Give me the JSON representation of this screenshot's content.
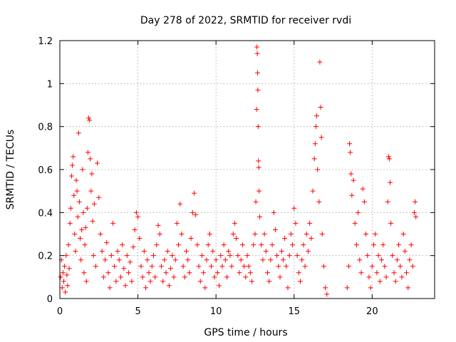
{
  "chart_data": {
    "type": "scatter",
    "title": "Day 278 of 2022, SRMTID for receiver rvdi",
    "xlabel": "GPS time / hours",
    "ylabel": "SRMTID / TECUs",
    "xlim": [
      0,
      24
    ],
    "ylim": [
      0,
      1.2
    ],
    "x_ticks": [
      0,
      5,
      10,
      15,
      20
    ],
    "x_tick_labels": [
      "0",
      "5",
      "10",
      "15",
      "20"
    ],
    "y_ticks": [
      0,
      0.2,
      0.4,
      0.6,
      0.8,
      1.0,
      1.2
    ],
    "y_tick_labels": [
      "0",
      "0.2",
      "0.4",
      "0.6",
      "0.8",
      "1",
      "1.2"
    ],
    "grid": true,
    "marker": "plus",
    "color": "#ff0000",
    "series": [
      {
        "name": "SRMTID",
        "points": [
          [
            0.05,
            0.1
          ],
          [
            0.1,
            0.18
          ],
          [
            0.15,
            0.05
          ],
          [
            0.2,
            0.12
          ],
          [
            0.25,
            0.08
          ],
          [
            0.3,
            0.15
          ],
          [
            0.35,
            0.03
          ],
          [
            0.4,
            0.2
          ],
          [
            0.45,
            0.11
          ],
          [
            0.5,
            0.06
          ],
          [
            0.55,
            0.25
          ],
          [
            0.6,
            0.14
          ],
          [
            0.65,
            0.35
          ],
          [
            0.7,
            0.42
          ],
          [
            0.75,
            0.57
          ],
          [
            0.8,
            0.62
          ],
          [
            0.85,
            0.66
          ],
          [
            0.9,
            0.48
          ],
          [
            0.95,
            0.3
          ],
          [
            1.0,
            0.22
          ],
          [
            1.05,
            0.55
          ],
          [
            1.1,
            0.5
          ],
          [
            1.15,
            0.38
          ],
          [
            1.2,
            0.77
          ],
          [
            1.25,
            0.45
          ],
          [
            1.3,
            0.28
          ],
          [
            1.35,
            0.18
          ],
          [
            1.4,
            0.32
          ],
          [
            1.45,
            0.6
          ],
          [
            1.5,
            0.4
          ],
          [
            1.55,
            0.12
          ],
          [
            1.6,
            0.25
          ],
          [
            1.65,
            0.33
          ],
          [
            1.7,
            0.08
          ],
          [
            1.75,
            0.42
          ],
          [
            1.8,
            0.68
          ],
          [
            1.85,
            0.84
          ],
          [
            1.9,
            0.83
          ],
          [
            1.95,
            0.65
          ],
          [
            2.0,
            0.5
          ],
          [
            2.05,
            0.58
          ],
          [
            2.1,
            0.36
          ],
          [
            2.15,
            0.2
          ],
          [
            2.2,
            0.44
          ],
          [
            2.3,
            0.15
          ],
          [
            2.4,
            0.63
          ],
          [
            2.5,
            0.47
          ],
          [
            2.6,
            0.3
          ],
          [
            2.7,
            0.22
          ],
          [
            2.8,
            0.1
          ],
          [
            2.9,
            0.18
          ],
          [
            3.0,
            0.26
          ],
          [
            3.1,
            0.12
          ],
          [
            3.2,
            0.05
          ],
          [
            3.3,
            0.2
          ],
          [
            3.4,
            0.35
          ],
          [
            3.5,
            0.15
          ],
          [
            3.6,
            0.08
          ],
          [
            3.7,
            0.22
          ],
          [
            3.8,
            0.18
          ],
          [
            3.9,
            0.1
          ],
          [
            4.0,
            0.25
          ],
          [
            4.1,
            0.14
          ],
          [
            4.2,
            0.06
          ],
          [
            4.3,
            0.2
          ],
          [
            4.4,
            0.12
          ],
          [
            4.5,
            0.17
          ],
          [
            4.6,
            0.08
          ],
          [
            4.7,
            0.24
          ],
          [
            4.8,
            0.32
          ],
          [
            4.9,
            0.4
          ],
          [
            5.0,
            0.38
          ],
          [
            5.1,
            0.28
          ],
          [
            5.2,
            0.15
          ],
          [
            5.3,
            0.1
          ],
          [
            5.4,
            0.22
          ],
          [
            5.5,
            0.05
          ],
          [
            5.6,
            0.18
          ],
          [
            5.7,
            0.12
          ],
          [
            5.8,
            0.08
          ],
          [
            5.9,
            0.15
          ],
          [
            6.0,
            0.2
          ],
          [
            6.1,
            0.1
          ],
          [
            6.2,
            0.25
          ],
          [
            6.3,
            0.34
          ],
          [
            6.4,
            0.3
          ],
          [
            6.5,
            0.15
          ],
          [
            6.6,
            0.08
          ],
          [
            6.7,
            0.18
          ],
          [
            6.8,
            0.12
          ],
          [
            6.9,
            0.22
          ],
          [
            7.0,
            0.06
          ],
          [
            7.1,
            0.14
          ],
          [
            7.2,
            0.2
          ],
          [
            7.3,
            0.1
          ],
          [
            7.4,
            0.18
          ],
          [
            7.5,
            0.35
          ],
          [
            7.6,
            0.25
          ],
          [
            7.7,
            0.44
          ],
          [
            7.8,
            0.3
          ],
          [
            7.9,
            0.15
          ],
          [
            8.0,
            0.1
          ],
          [
            8.1,
            0.22
          ],
          [
            8.2,
            0.18
          ],
          [
            8.3,
            0.12
          ],
          [
            8.4,
            0.28
          ],
          [
            8.5,
            0.4
          ],
          [
            8.6,
            0.49
          ],
          [
            8.7,
            0.39
          ],
          [
            8.8,
            0.25
          ],
          [
            8.9,
            0.15
          ],
          [
            9.0,
            0.08
          ],
          [
            9.1,
            0.2
          ],
          [
            9.2,
            0.12
          ],
          [
            9.3,
            0.05
          ],
          [
            9.4,
            0.18
          ],
          [
            9.5,
            0.25
          ],
          [
            9.6,
            0.3
          ],
          [
            9.7,
            0.15
          ],
          [
            9.8,
            0.22
          ],
          [
            9.9,
            0.1
          ],
          [
            10.0,
            0.18
          ],
          [
            10.1,
            0.12
          ],
          [
            10.2,
            0.06
          ],
          [
            10.3,
            0.2
          ],
          [
            10.4,
            0.15
          ],
          [
            10.5,
            0.25
          ],
          [
            10.6,
            0.18
          ],
          [
            10.7,
            0.1
          ],
          [
            10.8,
            0.22
          ],
          [
            10.9,
            0.2
          ],
          [
            11.0,
            0.15
          ],
          [
            11.1,
            0.3
          ],
          [
            11.2,
            0.35
          ],
          [
            11.3,
            0.28
          ],
          [
            11.4,
            0.2
          ],
          [
            11.5,
            0.12
          ],
          [
            11.6,
            0.18
          ],
          [
            11.7,
            0.25
          ],
          [
            11.8,
            0.15
          ],
          [
            11.9,
            0.1
          ],
          [
            12.0,
            0.2
          ],
          [
            12.1,
            0.15
          ],
          [
            12.2,
            0.12
          ],
          [
            12.3,
            0.08
          ],
          [
            12.4,
            0.25
          ],
          [
            12.5,
            0.3
          ],
          [
            12.55,
            0.45
          ],
          [
            12.6,
            0.88
          ],
          [
            12.62,
            1.17
          ],
          [
            12.64,
            1.14
          ],
          [
            12.66,
            1.05
          ],
          [
            12.68,
            0.97
          ],
          [
            12.7,
            0.8
          ],
          [
            12.72,
            0.64
          ],
          [
            12.74,
            0.61
          ],
          [
            12.76,
            0.5
          ],
          [
            12.8,
            0.38
          ],
          [
            12.9,
            0.25
          ],
          [
            13.0,
            0.18
          ],
          [
            13.1,
            0.3
          ],
          [
            13.2,
            0.22
          ],
          [
            13.3,
            0.12
          ],
          [
            13.4,
            0.08
          ],
          [
            13.5,
            0.18
          ],
          [
            13.6,
            0.25
          ],
          [
            13.7,
            0.4
          ],
          [
            13.8,
            0.32
          ],
          [
            13.9,
            0.2
          ],
          [
            14.0,
            0.15
          ],
          [
            14.1,
            0.1
          ],
          [
            14.2,
            0.22
          ],
          [
            14.3,
            0.18
          ],
          [
            14.4,
            0.28
          ],
          [
            14.5,
            0.15
          ],
          [
            14.6,
            0.05
          ],
          [
            14.7,
            0.2
          ],
          [
            14.8,
            0.3
          ],
          [
            14.9,
            0.25
          ],
          [
            15.0,
            0.42
          ],
          [
            15.1,
            0.35
          ],
          [
            15.2,
            0.2
          ],
          [
            15.3,
            0.12
          ],
          [
            15.4,
            0.08
          ],
          [
            15.5,
            0.18
          ],
          [
            15.6,
            0.25
          ],
          [
            15.7,
            0.15
          ],
          [
            15.8,
            0.3
          ],
          [
            15.9,
            0.22
          ],
          [
            16.0,
            0.35
          ],
          [
            16.1,
            0.28
          ],
          [
            16.2,
            0.5
          ],
          [
            16.3,
            0.65
          ],
          [
            16.35,
            0.72
          ],
          [
            16.4,
            0.8
          ],
          [
            16.45,
            0.85
          ],
          [
            16.5,
            0.6
          ],
          [
            16.6,
            0.45
          ],
          [
            16.65,
            1.1
          ],
          [
            16.7,
            0.89
          ],
          [
            16.75,
            0.75
          ],
          [
            16.8,
            0.3
          ],
          [
            16.9,
            0.15
          ],
          [
            17.0,
            0.05
          ],
          [
            17.1,
            0.02
          ],
          [
            18.4,
            0.05
          ],
          [
            18.5,
            0.15
          ],
          [
            18.55,
            0.72
          ],
          [
            18.6,
            0.68
          ],
          [
            18.65,
            0.58
          ],
          [
            18.7,
            0.48
          ],
          [
            18.8,
            0.55
          ],
          [
            18.9,
            0.35
          ],
          [
            19.0,
            0.25
          ],
          [
            19.1,
            0.4
          ],
          [
            19.2,
            0.18
          ],
          [
            19.3,
            0.12
          ],
          [
            19.4,
            0.51
          ],
          [
            19.5,
            0.45
          ],
          [
            19.6,
            0.3
          ],
          [
            19.7,
            0.2
          ],
          [
            19.8,
            0.1
          ],
          [
            19.9,
            0.05
          ],
          [
            20.0,
            0.15
          ],
          [
            20.1,
            0.25
          ],
          [
            20.2,
            0.3
          ],
          [
            20.3,
            0.12
          ],
          [
            20.4,
            0.2
          ],
          [
            20.5,
            0.08
          ],
          [
            20.6,
            0.18
          ],
          [
            20.7,
            0.25
          ],
          [
            20.8,
            0.15
          ],
          [
            20.9,
            0.1
          ],
          [
            21.0,
            0.45
          ],
          [
            21.05,
            0.66
          ],
          [
            21.1,
            0.65
          ],
          [
            21.15,
            0.54
          ],
          [
            21.2,
            0.35
          ],
          [
            21.3,
            0.2
          ],
          [
            21.4,
            0.12
          ],
          [
            21.5,
            0.08
          ],
          [
            21.6,
            0.18
          ],
          [
            21.7,
            0.25
          ],
          [
            21.8,
            0.15
          ],
          [
            21.9,
            0.1
          ],
          [
            22.0,
            0.3
          ],
          [
            22.1,
            0.22
          ],
          [
            22.2,
            0.12
          ],
          [
            22.3,
            0.05
          ],
          [
            22.4,
            0.18
          ],
          [
            22.5,
            0.25
          ],
          [
            22.6,
            0.15
          ],
          [
            22.7,
            0.4
          ],
          [
            22.75,
            0.45
          ],
          [
            22.8,
            0.38
          ]
        ]
      }
    ]
  }
}
